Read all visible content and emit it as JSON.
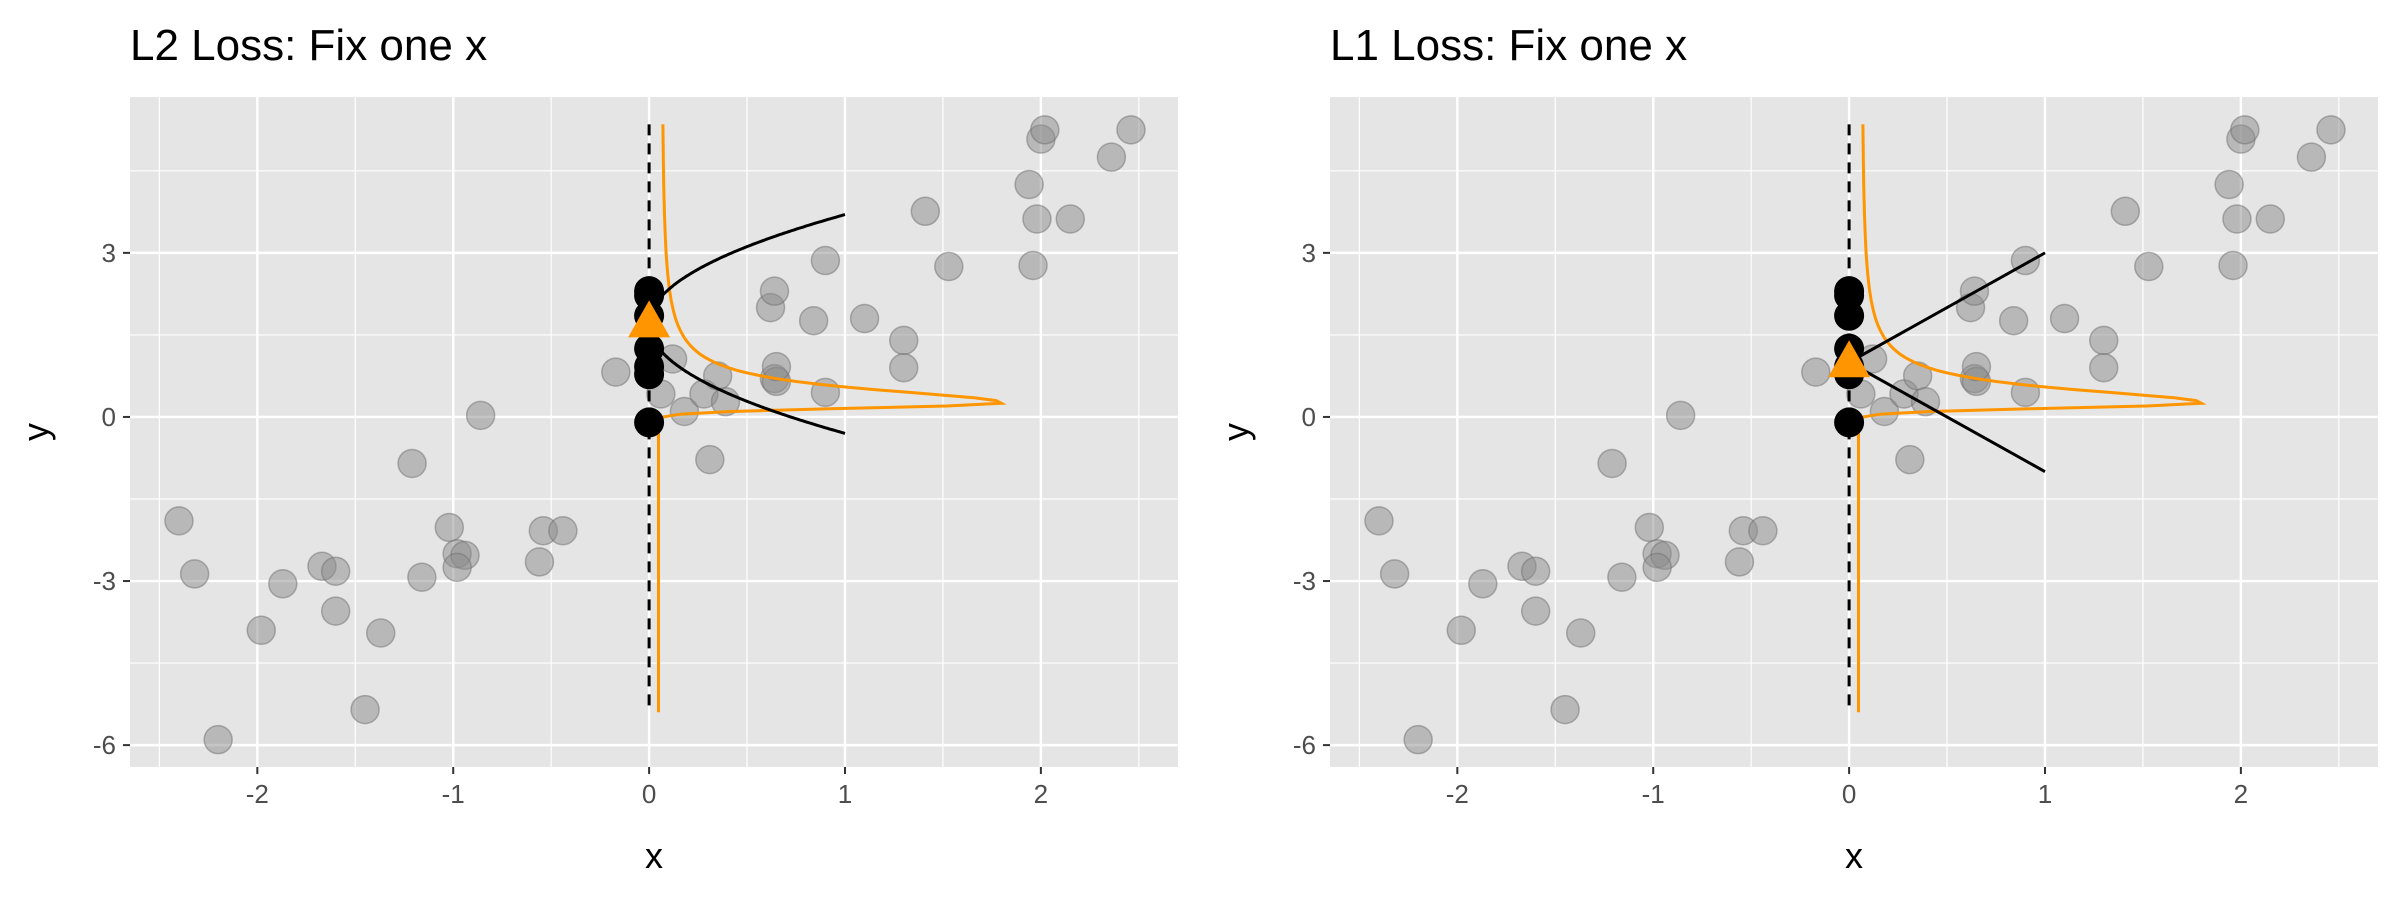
{
  "figure": {
    "colors": {
      "panel_bg": "#e5e5e5",
      "grid": "#ffffff",
      "points": "#8c8c8c",
      "highlight": "#000000",
      "density": "#ff9500",
      "loss": "#000000",
      "text": "#000000",
      "tick_text": "#4d4d4d"
    }
  },
  "chart_data": [
    {
      "type": "scatter",
      "title": "L2 Loss: Fix one x",
      "xlabel": "x",
      "ylabel": "y",
      "xlim": [
        -2.65,
        2.7
      ],
      "ylim": [
        -6.4,
        5.85
      ],
      "x_ticks": [
        -2,
        -1,
        0,
        1,
        2
      ],
      "y_ticks": [
        -6,
        -3,
        0,
        3
      ],
      "grid": true,
      "series": [
        {
          "role": "points",
          "points": [
            [
              -2.4,
              -1.9
            ],
            [
              -2.32,
              -2.87
            ],
            [
              -2.2,
              -5.9
            ],
            [
              -1.98,
              -3.9
            ],
            [
              -1.87,
              -3.05
            ],
            [
              -1.67,
              -2.73
            ],
            [
              -1.6,
              -2.82
            ],
            [
              -1.6,
              -3.55
            ],
            [
              -1.45,
              -5.35
            ],
            [
              -1.37,
              -3.95
            ],
            [
              -1.21,
              -0.85
            ],
            [
              -1.16,
              -2.93
            ],
            [
              -1.02,
              -2.02
            ],
            [
              -0.98,
              -2.5
            ],
            [
              -0.94,
              -2.53
            ],
            [
              -0.98,
              -2.75
            ],
            [
              -0.86,
              0.03
            ],
            [
              -0.56,
              -2.65
            ],
            [
              -0.54,
              -2.08
            ],
            [
              -0.44,
              -2.08
            ],
            [
              -0.17,
              0.82
            ],
            [
              0.06,
              0.42
            ],
            [
              0.12,
              1.06
            ],
            [
              0.18,
              0.1
            ],
            [
              0.28,
              0.42
            ],
            [
              0.31,
              -0.78
            ],
            [
              0.35,
              0.75
            ],
            [
              0.39,
              0.28
            ],
            [
              0.62,
              2.0
            ],
            [
              0.64,
              2.3
            ],
            [
              0.64,
              0.7
            ],
            [
              0.65,
              0.65
            ],
            [
              0.65,
              0.92
            ],
            [
              0.84,
              1.76
            ],
            [
              0.9,
              2.86
            ],
            [
              0.9,
              0.45
            ],
            [
              1.1,
              1.8
            ],
            [
              1.3,
              1.4
            ],
            [
              1.3,
              0.9
            ],
            [
              1.41,
              3.76
            ],
            [
              1.53,
              2.75
            ],
            [
              1.94,
              4.25
            ],
            [
              1.96,
              2.77
            ],
            [
              1.98,
              3.62
            ],
            [
              2.0,
              5.08
            ],
            [
              2.02,
              5.25
            ],
            [
              2.15,
              3.62
            ],
            [
              2.36,
              4.75
            ],
            [
              2.46,
              5.25
            ]
          ]
        },
        {
          "role": "fixed-x points",
          "points": [
            [
              0,
              -0.1
            ],
            [
              0,
              0.78
            ],
            [
              0,
              0.92
            ],
            [
              0,
              1.25
            ],
            [
              0,
              1.85
            ],
            [
              0,
              2.22
            ],
            [
              0,
              2.3
            ]
          ]
        },
        {
          "role": "minimizer",
          "points": [
            [
              0,
              1.73
            ]
          ]
        },
        {
          "role": "density",
          "x0": 0,
          "x_scale": 0.55,
          "y_peak": 0.25
        },
        {
          "role": "loss",
          "x0": 0,
          "y_min": 1.7,
          "y_max": 3.7,
          "kind": "L2"
        }
      ]
    },
    {
      "type": "scatter",
      "title": "L1 Loss: Fix one x",
      "xlabel": "x",
      "ylabel": "y",
      "xlim": [
        -2.65,
        2.7
      ],
      "ylim": [
        -6.4,
        5.85
      ],
      "x_ticks": [
        -2,
        -1,
        0,
        1,
        2
      ],
      "y_ticks": [
        -6,
        -3,
        0,
        3
      ],
      "grid": true,
      "series": [
        {
          "role": "points",
          "points": [
            [
              -2.4,
              -1.9
            ],
            [
              -2.32,
              -2.87
            ],
            [
              -2.2,
              -5.9
            ],
            [
              -1.98,
              -3.9
            ],
            [
              -1.87,
              -3.05
            ],
            [
              -1.67,
              -2.73
            ],
            [
              -1.6,
              -2.82
            ],
            [
              -1.6,
              -3.55
            ],
            [
              -1.45,
              -5.35
            ],
            [
              -1.37,
              -3.95
            ],
            [
              -1.21,
              -0.85
            ],
            [
              -1.16,
              -2.93
            ],
            [
              -1.02,
              -2.02
            ],
            [
              -0.98,
              -2.5
            ],
            [
              -0.94,
              -2.53
            ],
            [
              -0.98,
              -2.75
            ],
            [
              -0.86,
              0.03
            ],
            [
              -0.56,
              -2.65
            ],
            [
              -0.54,
              -2.08
            ],
            [
              -0.44,
              -2.08
            ],
            [
              -0.17,
              0.82
            ],
            [
              0.06,
              0.42
            ],
            [
              0.12,
              1.06
            ],
            [
              0.18,
              0.1
            ],
            [
              0.28,
              0.42
            ],
            [
              0.31,
              -0.78
            ],
            [
              0.35,
              0.75
            ],
            [
              0.39,
              0.28
            ],
            [
              0.62,
              2.0
            ],
            [
              0.64,
              2.3
            ],
            [
              0.64,
              0.7
            ],
            [
              0.65,
              0.65
            ],
            [
              0.65,
              0.92
            ],
            [
              0.84,
              1.76
            ],
            [
              0.9,
              2.86
            ],
            [
              0.9,
              0.45
            ],
            [
              1.1,
              1.8
            ],
            [
              1.3,
              1.4
            ],
            [
              1.3,
              0.9
            ],
            [
              1.41,
              3.76
            ],
            [
              1.53,
              2.75
            ],
            [
              1.94,
              4.25
            ],
            [
              1.96,
              2.77
            ],
            [
              1.98,
              3.62
            ],
            [
              2.0,
              5.08
            ],
            [
              2.02,
              5.25
            ],
            [
              2.15,
              3.62
            ],
            [
              2.36,
              4.75
            ],
            [
              2.46,
              5.25
            ]
          ]
        },
        {
          "role": "fixed-x points",
          "points": [
            [
              0,
              -0.1
            ],
            [
              0,
              0.78
            ],
            [
              0,
              0.92
            ],
            [
              0,
              1.25
            ],
            [
              0,
              1.85
            ],
            [
              0,
              2.22
            ],
            [
              0,
              2.3
            ]
          ]
        },
        {
          "role": "minimizer",
          "points": [
            [
              0,
              1.0
            ]
          ]
        },
        {
          "role": "density",
          "x0": 0,
          "x_scale": 0.55,
          "y_peak": 0.25
        },
        {
          "role": "loss",
          "x0": 0,
          "y_min": 1.0,
          "y_max": 3.0,
          "kind": "L1"
        }
      ]
    }
  ]
}
